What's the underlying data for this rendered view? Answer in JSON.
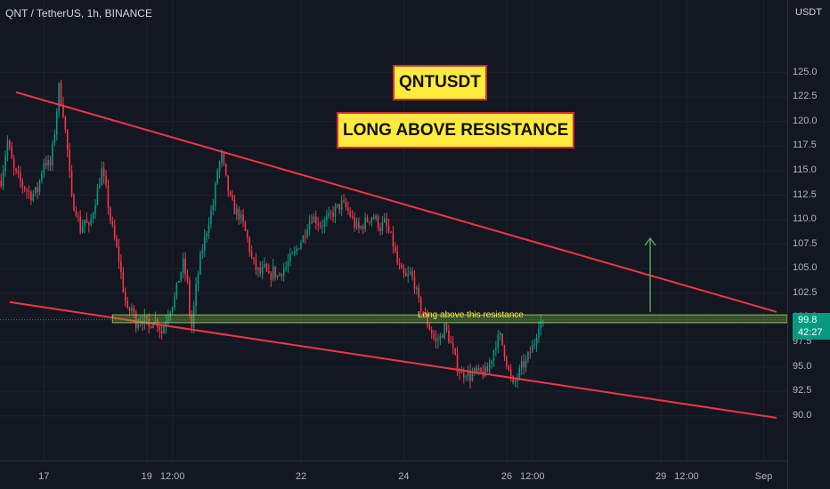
{
  "header": {
    "symbol_title": "QNT / TetherUS, 1h, BINANCE",
    "axis_unit": "USDT"
  },
  "annotations": {
    "pair_label": "QNTUSDT",
    "setup_label": "LONG ABOVE RESISTANCE",
    "resistance_note": "Long above this resistance"
  },
  "price_tag": {
    "price": "99.8",
    "countdown": "42:27"
  },
  "colors": {
    "background": "#131722",
    "up_candle": "#089981",
    "down_candle": "#f23645",
    "trendline": "#f23645",
    "resistance_zone": "#8bc34a",
    "arrow": "#4caf50",
    "label_fill": "#ffeb3b",
    "label_border": "#d32f2f"
  },
  "chart_data": {
    "type": "candlestick",
    "title": "QNT / TetherUS, 1h, BINANCE",
    "ylabel": "USDT",
    "y_ticks": [
      "90.0",
      "92.5",
      "95.0",
      "97.5",
      "100.0",
      "102.5",
      "105.0",
      "107.5",
      "110.0",
      "112.5",
      "115.0",
      "117.5",
      "120.0",
      "122.5",
      "125.0"
    ],
    "ylim": [
      87.8,
      127.6
    ],
    "x_ticks": [
      {
        "label": "17",
        "t": 0
      },
      {
        "label": "19",
        "t": 48
      },
      {
        "label": "12:00",
        "t": 60
      },
      {
        "label": "22",
        "t": 120
      },
      {
        "label": "24",
        "t": 168
      },
      {
        "label": "26",
        "t": 216
      },
      {
        "label": "12:00",
        "t": 228
      },
      {
        "label": "29",
        "t": 288
      },
      {
        "label": "12:00",
        "t": 300
      },
      {
        "label": "Sep",
        "t": 336
      }
    ],
    "xlim": [
      -20.5,
      347
    ],
    "price_path": [
      [
        -20,
        114
      ],
      [
        -17,
        118
      ],
      [
        -14,
        115
      ],
      [
        -10,
        113.5
      ],
      [
        -6,
        112.5
      ],
      [
        -3,
        113
      ],
      [
        0,
        116
      ],
      [
        3,
        115.5
      ],
      [
        5,
        119
      ],
      [
        7,
        123.5
      ],
      [
        9,
        121
      ],
      [
        11,
        117
      ],
      [
        13,
        112
      ],
      [
        15,
        111
      ],
      [
        17,
        109
      ],
      [
        19,
        110
      ],
      [
        21,
        109
      ],
      [
        23,
        111
      ],
      [
        25,
        113
      ],
      [
        27,
        115
      ],
      [
        29,
        113
      ],
      [
        31,
        110
      ],
      [
        33,
        108
      ],
      [
        35,
        106
      ],
      [
        37,
        103
      ],
      [
        39,
        100.5
      ],
      [
        41,
        101
      ],
      [
        43,
        99.5
      ],
      [
        45,
        100
      ],
      [
        47,
        99.7
      ],
      [
        49,
        99
      ],
      [
        51,
        100
      ],
      [
        53,
        99.5
      ],
      [
        55,
        98.5
      ],
      [
        57,
        100
      ],
      [
        59,
        101
      ],
      [
        61,
        102
      ],
      [
        63,
        104
      ],
      [
        65,
        105.5
      ],
      [
        67,
        103.5
      ],
      [
        68,
        100.5
      ],
      [
        69,
        99
      ],
      [
        71,
        103
      ],
      [
        73,
        106
      ],
      [
        75,
        108
      ],
      [
        77,
        110
      ],
      [
        79,
        111.5
      ],
      [
        81,
        115
      ],
      [
        83,
        116.5
      ],
      [
        85,
        114
      ],
      [
        87,
        112
      ],
      [
        89,
        111
      ],
      [
        91,
        110.5
      ],
      [
        93,
        109.5
      ],
      [
        95,
        108
      ],
      [
        97,
        106
      ],
      [
        99,
        105
      ],
      [
        101,
        104.5
      ],
      [
        103,
        105
      ],
      [
        105,
        104
      ],
      [
        107,
        104.8
      ],
      [
        109,
        104.2
      ],
      [
        111,
        104.8
      ],
      [
        113,
        105.2
      ],
      [
        115,
        106
      ],
      [
        117,
        106.5
      ],
      [
        119,
        107.5
      ],
      [
        121,
        108.2
      ],
      [
        123,
        109.5
      ],
      [
        125,
        110.3
      ],
      [
        127,
        110
      ],
      [
        129,
        109.5
      ],
      [
        131,
        109.7
      ],
      [
        133,
        110.2
      ],
      [
        135,
        110.7
      ],
      [
        137,
        111.2
      ],
      [
        139,
        111.6
      ],
      [
        141,
        111.2
      ],
      [
        143,
        110.5
      ],
      [
        145,
        109.5
      ],
      [
        147,
        109
      ],
      [
        149,
        109.5
      ],
      [
        151,
        110
      ],
      [
        153,
        110.4
      ],
      [
        155,
        110
      ],
      [
        157,
        109.2
      ],
      [
        159,
        109.7
      ],
      [
        161,
        108.7
      ],
      [
        163,
        107.5
      ],
      [
        165,
        105.5
      ],
      [
        167,
        104.5
      ],
      [
        169,
        104
      ],
      [
        171,
        104.5
      ],
      [
        173,
        103.5
      ],
      [
        175,
        101.5
      ],
      [
        177,
        100.5
      ],
      [
        179,
        99.5
      ],
      [
        181,
        98.5
      ],
      [
        183,
        97.5
      ],
      [
        185,
        98
      ],
      [
        187,
        99
      ],
      [
        189,
        98
      ],
      [
        191,
        96.5
      ],
      [
        193,
        95
      ],
      [
        195,
        94.2
      ],
      [
        197,
        94.5
      ],
      [
        199,
        94
      ],
      [
        201,
        94.4
      ],
      [
        203,
        94.3
      ],
      [
        205,
        94.4
      ],
      [
        207,
        94.5
      ],
      [
        209,
        96
      ],
      [
        211,
        97.5
      ],
      [
        213,
        98
      ],
      [
        215,
        96.5
      ],
      [
        217,
        94.5
      ],
      [
        219,
        93
      ],
      [
        221,
        94
      ],
      [
        223,
        95
      ],
      [
        225,
        95.5
      ],
      [
        227,
        96.5
      ],
      [
        229,
        97.5
      ],
      [
        231,
        99.5
      ],
      [
        233,
        99.8
      ]
    ],
    "series": [
      {
        "name": "",
        "kind": "trendline",
        "from": {
          "t": -13,
          "price": 123.0
        },
        "to": {
          "t": 342,
          "price": 100.6
        }
      },
      {
        "name": "",
        "kind": "trendline",
        "from": {
          "t": -16,
          "price": 101.6
        },
        "to": {
          "t": 342,
          "price": 89.8
        }
      },
      {
        "name": "",
        "kind": "zone",
        "x_from": 32,
        "x_to": 347,
        "price_low": 99.5,
        "price_high": 100.3
      }
    ],
    "arrow": {
      "t": 283,
      "price_from": 100.6,
      "price_to": 108.1
    },
    "last_price": 99.8
  }
}
